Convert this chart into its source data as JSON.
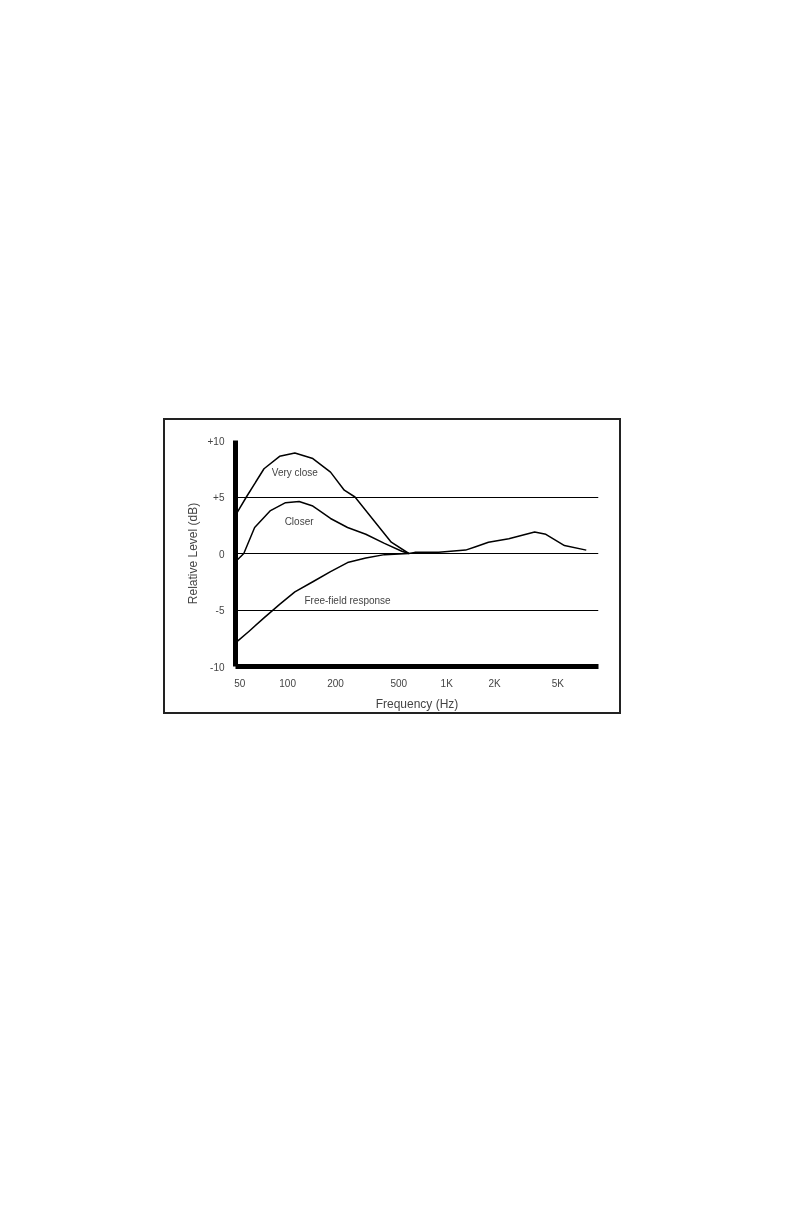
{
  "chart_data": {
    "type": "line",
    "xlabel": "Frequency (Hz)",
    "ylabel": "Relative Level (dB)",
    "log": "x",
    "xlim": [
      47,
      9000
    ],
    "ylim": [
      -10,
      10
    ],
    "xticks": [
      50,
      100,
      200,
      500,
      {
        "value": 1000,
        "label": "1K"
      },
      {
        "value": 2000,
        "label": "2K"
      },
      {
        "value": 5000,
        "label": "5K"
      }
    ],
    "yticks": [
      {
        "value": 10,
        "label": "+10"
      },
      {
        "value": 5,
        "label": "+5"
      },
      0,
      -5,
      -10
    ],
    "grid": "y",
    "marker": "none",
    "line_style": "solid",
    "series": [
      {
        "name": "Very close",
        "color": "#000000",
        "x": [
          48,
          55,
          71,
          89,
          111,
          144,
          186,
          227,
          265,
          349,
          448,
          578
        ],
        "values": [
          3.6,
          5.0,
          7.5,
          8.6,
          8.9,
          8.4,
          7.2,
          5.6,
          5.0,
          2.9,
          1.0,
          0
        ]
      },
      {
        "name": "Closer",
        "color": "#000000",
        "x": [
          48,
          53,
          62,
          78,
          97,
          118,
          144,
          186,
          238,
          310,
          406,
          522,
          578
        ],
        "values": [
          -0.6,
          0,
          2.3,
          3.8,
          4.5,
          4.6,
          4.2,
          3.1,
          2.3,
          1.7,
          0.9,
          0.2,
          0
        ]
      },
      {
        "name": "Free-field response",
        "color": "#000000",
        "x": [
          48,
          57,
          71,
          89,
          111,
          144,
          186,
          238,
          310,
          406,
          578,
          630,
          891,
          1315,
          1520,
          1830,
          2457,
          3570,
          4200,
          5500,
          7540
        ],
        "values": [
          -7.8,
          -6.9,
          -5.7,
          -4.5,
          -3.4,
          -2.5,
          -1.6,
          -0.8,
          -0.4,
          -0.1,
          0,
          0.1,
          0.1,
          0.3,
          0.6,
          1.0,
          1.3,
          1.9,
          1.7,
          0.7,
          0.3
        ]
      }
    ]
  }
}
